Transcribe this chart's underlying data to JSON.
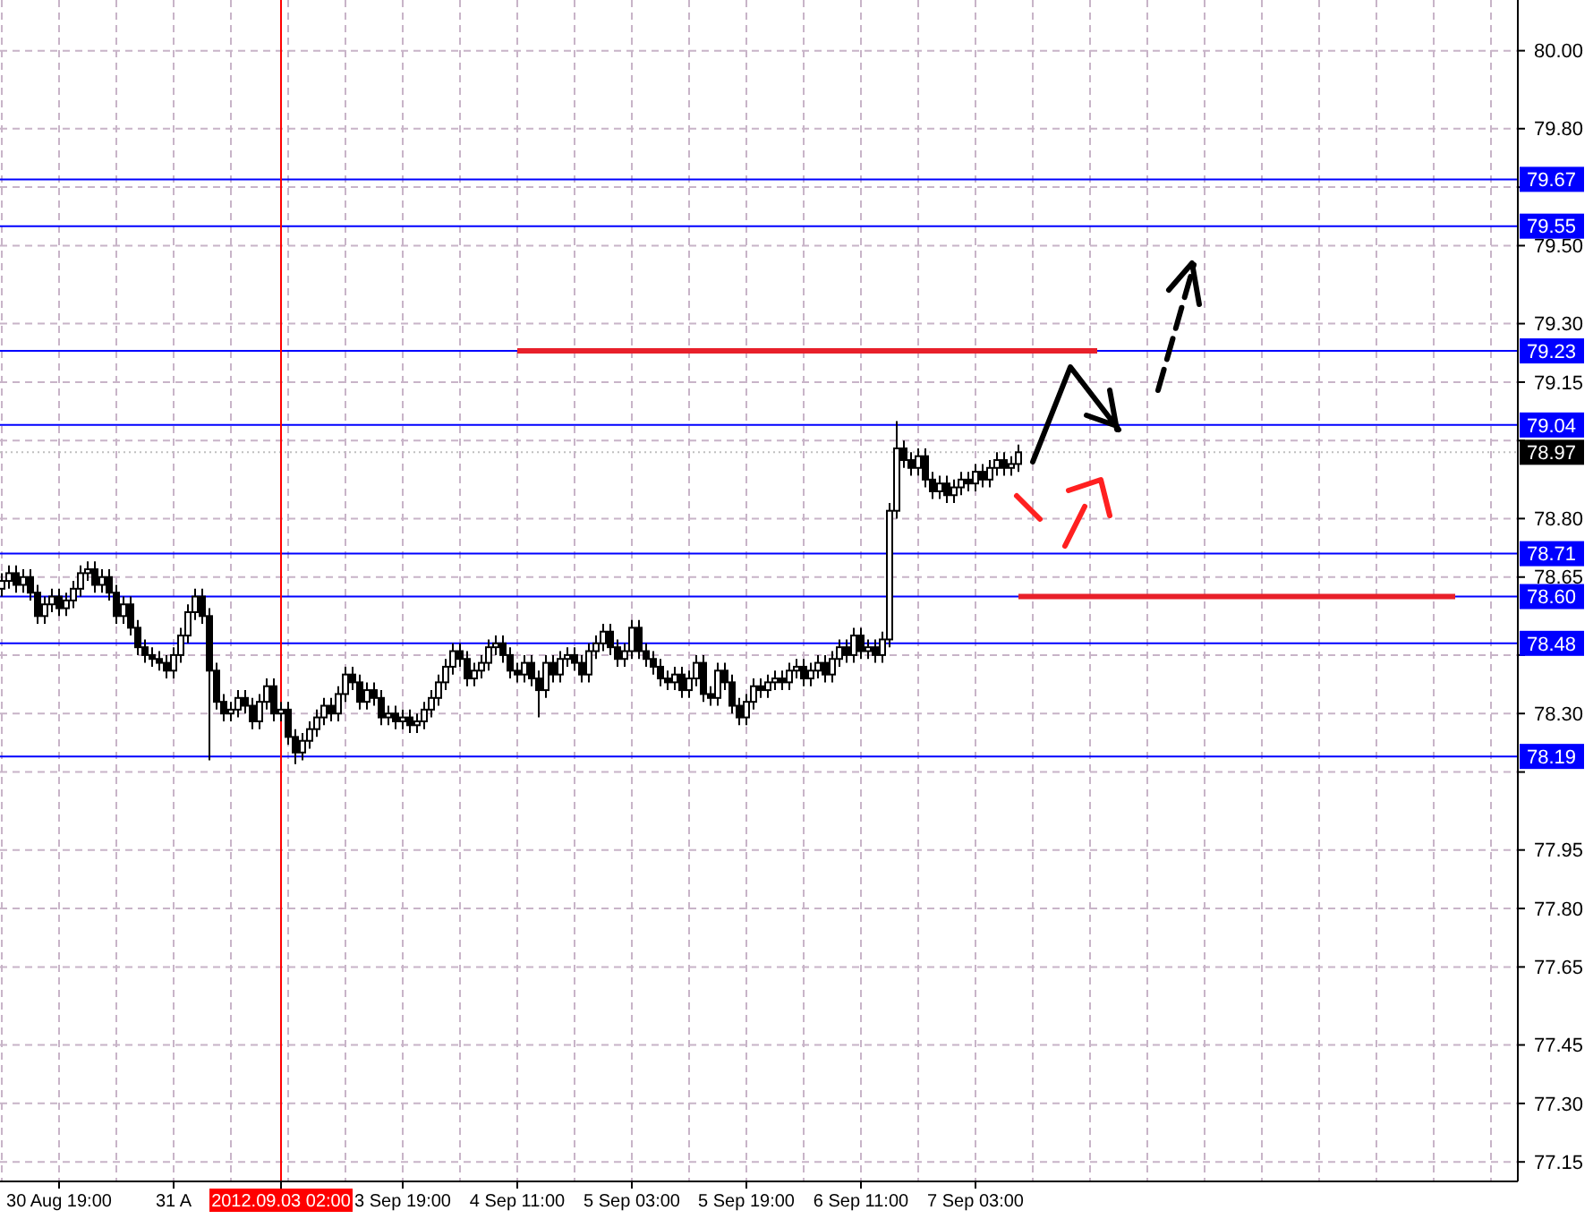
{
  "chart_data": {
    "type": "candlestick",
    "color": "#000000",
    "categories": [
      null,
      null,
      null,
      null,
      null,
      null,
      null,
      null,
      "30 Aug 19:00",
      null,
      null,
      null,
      null,
      null,
      null,
      null,
      null,
      null,
      null,
      null,
      null,
      null,
      null,
      null,
      "31 A",
      null,
      null,
      null,
      null,
      null,
      null,
      null,
      null,
      null,
      null,
      null,
      null,
      null,
      null,
      "2012.09.03 02:00",
      null,
      null,
      null,
      null,
      null,
      null,
      null,
      null,
      null,
      null,
      null,
      null,
      null,
      null,
      null,
      null,
      "3 Sep 19:00",
      null,
      null,
      null,
      null,
      null,
      null,
      null,
      null,
      null,
      null,
      null,
      null,
      null,
      null,
      null,
      "4 Sep 11:00",
      null,
      null,
      null,
      null,
      null,
      null,
      null,
      null,
      null,
      null,
      null,
      null,
      null,
      null,
      null,
      "5 Sep 03:00",
      null,
      null,
      null,
      null,
      null,
      null,
      null,
      null,
      null,
      null,
      null,
      null,
      null,
      null,
      null,
      "5 Sep 19:00",
      null,
      null,
      null,
      null,
      null,
      null,
      null,
      null,
      null,
      null,
      null,
      null,
      null,
      null,
      null,
      "6 Sep 11:00",
      null,
      null,
      null,
      null,
      null,
      null,
      null,
      null,
      null,
      null,
      null,
      null,
      null,
      null,
      null,
      "7 Sep 03:00",
      null,
      null,
      null,
      null,
      null,
      null,
      null,
      null,
      null,
      null,
      null,
      null,
      null,
      null,
      null,
      null,
      null,
      null,
      null,
      null,
      null,
      null,
      null,
      null,
      null,
      null,
      null,
      null,
      null,
      null,
      null,
      null,
      null,
      null,
      null,
      null,
      null,
      null,
      null,
      null,
      null,
      null,
      null,
      null,
      null,
      null,
      null,
      null,
      null,
      null,
      null,
      null,
      null,
      null,
      null,
      null,
      null,
      null,
      null,
      null,
      null,
      null,
      null,
      null,
      null,
      null,
      null,
      null,
      null,
      null,
      null,
      null,
      null,
      null,
      null
    ],
    "ohlc": [
      [
        78.62,
        78.66,
        78.6,
        78.64
      ],
      [
        78.64,
        78.68,
        78.62,
        78.66
      ],
      [
        78.66,
        78.68,
        78.61,
        78.63
      ],
      [
        78.63,
        78.67,
        78.61,
        78.65
      ],
      [
        78.65,
        78.67,
        78.59,
        78.61
      ],
      [
        78.61,
        78.63,
        78.53,
        78.55
      ],
      [
        78.55,
        78.6,
        78.53,
        78.58
      ],
      [
        78.58,
        78.62,
        78.56,
        78.6
      ],
      [
        78.6,
        78.62,
        78.55,
        78.57
      ],
      [
        78.57,
        78.61,
        78.55,
        78.59
      ],
      [
        78.59,
        78.64,
        78.57,
        78.62
      ],
      [
        78.62,
        78.68,
        78.6,
        78.66
      ],
      [
        78.66,
        78.69,
        78.64,
        78.67
      ],
      [
        78.67,
        78.69,
        78.61,
        78.63
      ],
      [
        78.63,
        78.67,
        78.61,
        78.65
      ],
      [
        78.65,
        78.67,
        78.59,
        78.61
      ],
      [
        78.61,
        78.63,
        78.53,
        78.55
      ],
      [
        78.55,
        78.6,
        78.53,
        78.58
      ],
      [
        78.58,
        78.6,
        78.5,
        78.52
      ],
      [
        78.52,
        78.54,
        78.45,
        78.47
      ],
      [
        78.47,
        78.49,
        78.43,
        78.45
      ],
      [
        78.45,
        78.47,
        78.42,
        78.44
      ],
      [
        78.44,
        78.46,
        78.41,
        78.43
      ],
      [
        78.43,
        78.45,
        78.39,
        78.41
      ],
      [
        78.41,
        78.47,
        78.39,
        78.45
      ],
      [
        78.45,
        78.52,
        78.43,
        78.5
      ],
      [
        78.5,
        78.58,
        78.48,
        78.56
      ],
      [
        78.56,
        78.62,
        78.54,
        78.6
      ],
      [
        78.6,
        78.62,
        78.53,
        78.55
      ],
      [
        78.55,
        78.57,
        78.18,
        78.41
      ],
      [
        78.41,
        78.43,
        78.31,
        78.33
      ],
      [
        78.33,
        78.35,
        78.28,
        78.3
      ],
      [
        78.3,
        78.33,
        78.28,
        78.31
      ],
      [
        78.31,
        78.36,
        78.29,
        78.34
      ],
      [
        78.34,
        78.36,
        78.3,
        78.32
      ],
      [
        78.32,
        78.34,
        78.26,
        78.28
      ],
      [
        78.28,
        78.35,
        78.26,
        78.33
      ],
      [
        78.33,
        78.39,
        78.31,
        78.37
      ],
      [
        78.37,
        78.39,
        78.28,
        78.3
      ],
      [
        78.3,
        78.33,
        78.28,
        78.31
      ],
      [
        78.31,
        78.33,
        78.22,
        78.24
      ],
      [
        78.24,
        78.26,
        78.17,
        78.2
      ],
      [
        78.2,
        78.25,
        78.18,
        78.23
      ],
      [
        78.23,
        78.28,
        78.21,
        78.26
      ],
      [
        78.26,
        78.31,
        78.24,
        78.29
      ],
      [
        78.29,
        78.34,
        78.27,
        78.32
      ],
      [
        78.32,
        78.34,
        78.28,
        78.3
      ],
      [
        78.3,
        78.37,
        78.28,
        78.35
      ],
      [
        78.35,
        78.42,
        78.33,
        78.4
      ],
      [
        78.4,
        78.42,
        78.36,
        78.38
      ],
      [
        78.38,
        78.4,
        78.31,
        78.33
      ],
      [
        78.33,
        78.38,
        78.31,
        78.36
      ],
      [
        78.36,
        78.38,
        78.32,
        78.34
      ],
      [
        78.34,
        78.36,
        78.27,
        78.29
      ],
      [
        78.29,
        78.32,
        78.27,
        78.3
      ],
      [
        78.3,
        78.32,
        78.26,
        78.28
      ],
      [
        78.28,
        78.31,
        78.26,
        78.29
      ],
      [
        78.29,
        78.31,
        78.25,
        78.27
      ],
      [
        78.27,
        78.3,
        78.25,
        78.28
      ],
      [
        78.28,
        78.33,
        78.26,
        78.31
      ],
      [
        78.31,
        78.36,
        78.29,
        78.34
      ],
      [
        78.34,
        78.4,
        78.32,
        78.38
      ],
      [
        78.38,
        78.44,
        78.36,
        78.42
      ],
      [
        78.42,
        78.48,
        78.4,
        78.46
      ],
      [
        78.46,
        78.48,
        78.42,
        78.44
      ],
      [
        78.44,
        78.46,
        78.37,
        78.39
      ],
      [
        78.39,
        78.43,
        78.37,
        78.41
      ],
      [
        78.41,
        78.45,
        78.39,
        78.43
      ],
      [
        78.43,
        78.49,
        78.41,
        78.47
      ],
      [
        78.47,
        78.5,
        78.45,
        78.48
      ],
      [
        78.48,
        78.5,
        78.43,
        78.45
      ],
      [
        78.45,
        78.47,
        78.39,
        78.41
      ],
      [
        78.41,
        78.43,
        78.38,
        78.4
      ],
      [
        78.4,
        78.45,
        78.38,
        78.43
      ],
      [
        78.43,
        78.45,
        78.37,
        78.39
      ],
      [
        78.39,
        78.41,
        78.29,
        78.36
      ],
      [
        78.36,
        78.45,
        78.34,
        78.43
      ],
      [
        78.43,
        78.45,
        78.38,
        78.4
      ],
      [
        78.4,
        78.46,
        78.38,
        78.44
      ],
      [
        78.44,
        78.47,
        78.42,
        78.45
      ],
      [
        78.45,
        78.47,
        78.41,
        78.43
      ],
      [
        78.43,
        78.45,
        78.38,
        78.4
      ],
      [
        78.4,
        78.48,
        78.38,
        78.46
      ],
      [
        78.46,
        78.5,
        78.44,
        78.48
      ],
      [
        78.48,
        78.53,
        78.46,
        78.51
      ],
      [
        78.51,
        78.53,
        78.45,
        78.47
      ],
      [
        78.47,
        78.49,
        78.42,
        78.44
      ],
      [
        78.44,
        78.48,
        78.42,
        78.46
      ],
      [
        78.46,
        78.54,
        78.44,
        78.52
      ],
      [
        78.52,
        78.54,
        78.44,
        78.46
      ],
      [
        78.46,
        78.48,
        78.42,
        78.44
      ],
      [
        78.44,
        78.46,
        78.4,
        78.42
      ],
      [
        78.42,
        78.44,
        78.37,
        78.39
      ],
      [
        78.39,
        78.41,
        78.36,
        78.38
      ],
      [
        78.38,
        78.42,
        78.36,
        78.4
      ],
      [
        78.4,
        78.42,
        78.34,
        78.36
      ],
      [
        78.36,
        78.41,
        78.34,
        78.39
      ],
      [
        78.39,
        78.45,
        78.37,
        78.43
      ],
      [
        78.43,
        78.45,
        78.33,
        78.35
      ],
      [
        78.35,
        78.37,
        78.32,
        78.34
      ],
      [
        78.34,
        78.43,
        78.32,
        78.41
      ],
      [
        78.41,
        78.43,
        78.36,
        78.38
      ],
      [
        78.38,
        78.4,
        78.3,
        78.32
      ],
      [
        78.32,
        78.34,
        78.27,
        78.29
      ],
      [
        78.29,
        78.35,
        78.27,
        78.33
      ],
      [
        78.33,
        78.39,
        78.31,
        78.37
      ],
      [
        78.37,
        78.39,
        78.34,
        78.36
      ],
      [
        78.36,
        78.4,
        78.34,
        78.38
      ],
      [
        78.38,
        78.41,
        78.36,
        78.39
      ],
      [
        78.39,
        78.41,
        78.36,
        78.38
      ],
      [
        78.38,
        78.43,
        78.36,
        78.41
      ],
      [
        78.41,
        78.44,
        78.39,
        78.42
      ],
      [
        78.42,
        78.44,
        78.37,
        78.39
      ],
      [
        78.39,
        78.43,
        78.37,
        78.41
      ],
      [
        78.41,
        78.45,
        78.39,
        78.43
      ],
      [
        78.43,
        78.45,
        78.38,
        78.4
      ],
      [
        78.4,
        78.46,
        78.38,
        78.44
      ],
      [
        78.44,
        78.49,
        78.42,
        78.47
      ],
      [
        78.47,
        78.49,
        78.43,
        78.45
      ],
      [
        78.45,
        78.52,
        78.43,
        78.5
      ],
      [
        78.5,
        78.52,
        78.44,
        78.46
      ],
      [
        78.46,
        78.49,
        78.44,
        78.47
      ],
      [
        78.47,
        78.49,
        78.43,
        78.45
      ],
      [
        78.45,
        78.51,
        78.43,
        78.49
      ],
      [
        78.49,
        78.84,
        78.47,
        78.82
      ],
      [
        78.82,
        79.05,
        78.8,
        78.98
      ],
      [
        78.98,
        79.0,
        78.93,
        78.95
      ],
      [
        78.95,
        78.97,
        78.91,
        78.93
      ],
      [
        78.93,
        78.98,
        78.91,
        78.96
      ],
      [
        78.96,
        78.98,
        78.88,
        78.9
      ],
      [
        78.9,
        78.92,
        78.85,
        78.87
      ],
      [
        78.87,
        78.91,
        78.85,
        78.89
      ],
      [
        78.89,
        78.91,
        78.84,
        78.86
      ],
      [
        78.86,
        78.9,
        78.84,
        78.88
      ],
      [
        78.88,
        78.92,
        78.86,
        78.9
      ],
      [
        78.9,
        78.92,
        78.87,
        78.89
      ],
      [
        78.89,
        78.94,
        78.87,
        78.92
      ],
      [
        78.92,
        78.94,
        78.88,
        78.9
      ],
      [
        78.9,
        78.95,
        78.88,
        78.93
      ],
      [
        78.93,
        78.97,
        78.91,
        78.95
      ],
      [
        78.95,
        78.97,
        78.91,
        78.93
      ],
      [
        78.93,
        78.96,
        78.91,
        78.94
      ],
      [
        78.94,
        78.99,
        78.92,
        78.97
      ],
      null,
      null,
      null,
      null,
      null,
      null,
      null,
      null,
      null,
      null,
      null,
      null,
      null,
      null,
      null,
      null,
      null,
      null,
      null,
      null,
      null,
      null,
      null,
      null,
      null,
      null,
      null,
      null,
      null,
      null,
      null,
      null,
      null,
      null,
      null,
      null,
      null,
      null,
      null,
      null,
      null,
      null,
      null,
      null,
      null,
      null,
      null,
      null,
      null,
      null,
      null,
      null,
      null,
      null,
      null,
      null,
      null,
      null,
      null,
      null,
      null,
      null,
      null,
      null,
      null,
      null,
      null,
      null,
      null
    ],
    "series": [
      {
        "type": "line",
        "color": "#e8202a",
        "values": [
          null,
          null,
          null,
          null,
          null,
          null,
          null,
          null,
          null,
          null,
          null,
          null,
          null,
          null,
          null,
          null,
          null,
          null,
          null,
          null,
          null,
          null,
          null,
          null,
          null,
          null,
          null,
          null,
          null,
          null,
          null,
          null,
          null,
          null,
          null,
          null,
          null,
          null,
          null,
          null,
          null,
          null,
          null,
          null,
          null,
          null,
          null,
          null,
          null,
          null,
          null,
          null,
          null,
          null,
          null,
          null,
          null,
          null,
          null,
          null,
          null,
          null,
          null,
          null,
          null,
          null,
          null,
          null,
          null,
          null,
          null,
          null,
          79.23,
          79.23,
          79.23,
          79.23,
          79.23,
          79.23,
          79.23,
          79.23,
          79.23,
          79.23,
          79.23,
          79.23,
          79.23,
          79.23,
          79.23,
          79.23,
          79.23,
          79.23,
          79.23,
          79.23,
          79.23,
          79.23,
          79.23,
          79.23,
          79.23,
          79.23,
          79.23,
          79.23,
          79.23,
          79.23,
          79.23,
          79.23,
          79.23,
          79.23,
          79.23,
          79.23,
          79.23,
          79.23,
          79.23,
          79.23,
          79.23,
          79.23,
          79.23,
          79.23,
          79.23,
          79.23,
          79.23,
          79.23,
          79.23,
          79.23,
          79.23,
          79.23,
          79.23,
          79.23,
          79.23,
          79.23,
          79.23,
          79.23,
          79.23,
          79.23,
          79.23,
          79.23,
          79.23,
          79.23,
          79.23,
          79.23,
          79.23,
          79.23,
          79.23,
          79.23,
          79.23,
          79.23,
          79.23,
          79.23,
          79.23,
          79.23,
          79.23,
          79.23,
          79.23,
          79.23,
          79.23,
          79.23,
          null,
          null,
          null,
          null,
          null,
          null,
          null,
          null,
          null,
          null,
          null,
          null,
          null,
          null,
          null,
          null,
          null,
          null,
          null,
          null,
          null,
          null,
          null,
          null,
          null,
          null,
          null,
          null,
          null,
          null,
          null,
          null,
          null,
          null,
          null,
          null,
          null,
          null,
          null,
          null,
          null,
          null,
          null,
          null,
          null,
          null,
          null,
          null,
          null,
          null,
          null,
          null,
          null,
          null,
          null,
          null,
          null,
          null
        ]
      },
      {
        "type": "line",
        "color": "#e8202a",
        "values": [
          null,
          null,
          null,
          null,
          null,
          null,
          null,
          null,
          null,
          null,
          null,
          null,
          null,
          null,
          null,
          null,
          null,
          null,
          null,
          null,
          null,
          null,
          null,
          null,
          null,
          null,
          null,
          null,
          null,
          null,
          null,
          null,
          null,
          null,
          null,
          null,
          null,
          null,
          null,
          null,
          null,
          null,
          null,
          null,
          null,
          null,
          null,
          null,
          null,
          null,
          null,
          null,
          null,
          null,
          null,
          null,
          null,
          null,
          null,
          null,
          null,
          null,
          null,
          null,
          null,
          null,
          null,
          null,
          null,
          null,
          null,
          null,
          null,
          null,
          null,
          null,
          null,
          null,
          null,
          null,
          null,
          null,
          null,
          null,
          null,
          null,
          null,
          null,
          null,
          null,
          null,
          null,
          null,
          null,
          null,
          null,
          null,
          null,
          null,
          null,
          null,
          null,
          null,
          null,
          null,
          null,
          null,
          null,
          null,
          null,
          null,
          null,
          null,
          null,
          null,
          null,
          null,
          null,
          null,
          null,
          null,
          null,
          null,
          null,
          null,
          null,
          null,
          null,
          null,
          null,
          null,
          null,
          null,
          null,
          null,
          null,
          null,
          null,
          null,
          null,
          null,
          null,
          78.6,
          78.6,
          78.6,
          78.6,
          78.6,
          78.6,
          78.6,
          78.6,
          78.6,
          78.6,
          78.6,
          78.6,
          78.6,
          78.6,
          78.6,
          78.6,
          78.6,
          78.6,
          78.6,
          78.6,
          78.6,
          78.6,
          78.6,
          78.6,
          78.6,
          78.6,
          78.6,
          78.6,
          78.6,
          78.6,
          78.6,
          78.6,
          78.6,
          78.6,
          78.6,
          78.6,
          78.6,
          78.6,
          78.6,
          78.6,
          78.6,
          78.6,
          78.6,
          78.6,
          78.6,
          78.6,
          78.6,
          78.6,
          78.6,
          78.6,
          78.6,
          78.6,
          78.6,
          78.6,
          78.6,
          78.6,
          78.6,
          78.6,
          78.6,
          78.6,
          78.6,
          78.6,
          null,
          null,
          null,
          null,
          null,
          null,
          null,
          null
        ]
      }
    ],
    "ylim": [
      77.1,
      80.13
    ],
    "yticks": [
      {
        "value": 80.0,
        "label": "80.00"
      },
      {
        "value": 79.8,
        "label": "79.80"
      },
      {
        "value": 79.65,
        "label": null
      },
      {
        "value": 79.5,
        "label": "79.50"
      },
      {
        "value": 79.3,
        "label": "79.30"
      },
      79.15,
      {
        "value": 79.0,
        "label": null
      },
      {
        "value": 78.8,
        "label": "78.80"
      },
      78.65,
      {
        "value": 78.45,
        "label": null
      },
      {
        "value": 78.3,
        "label": "78.30"
      },
      {
        "value": 78.15,
        "label": null
      },
      77.95,
      {
        "value": 77.8,
        "label": "77.80"
      },
      77.65,
      77.45,
      {
        "value": 77.3,
        "label": "77.30"
      },
      77.15
    ],
    "grid": true,
    "ref_lines": [
      {
        "axis": "y",
        "value": 79.67,
        "label": "79.67",
        "color": "#0000ff"
      },
      {
        "axis": "y",
        "value": 79.55,
        "label": "79.55",
        "color": "#0000ff"
      },
      {
        "axis": "y",
        "value": 79.23,
        "label": "79.23",
        "color": "#0000ff"
      },
      {
        "axis": "y",
        "value": 79.04,
        "label": "79.04",
        "color": "#0000ff"
      },
      {
        "axis": "y",
        "value": 78.97,
        "label": "78.97",
        "color": "#c0c0c0",
        "line_style": "dotted"
      },
      {
        "axis": "y",
        "value": 78.71,
        "label": "78.71",
        "color": "#0000ff"
      },
      {
        "axis": "y",
        "value": 78.6,
        "label": "78.60",
        "color": "#0000ff"
      },
      {
        "axis": "y",
        "value": 78.48,
        "label": "78.48",
        "color": "#0000ff"
      },
      {
        "axis": "y",
        "value": 78.19,
        "label": "78.19",
        "color": "#0000ff"
      },
      {
        "axis": "x",
        "value": "2012.09.03 02:00",
        "color": "#ff0000"
      }
    ]
  }
}
